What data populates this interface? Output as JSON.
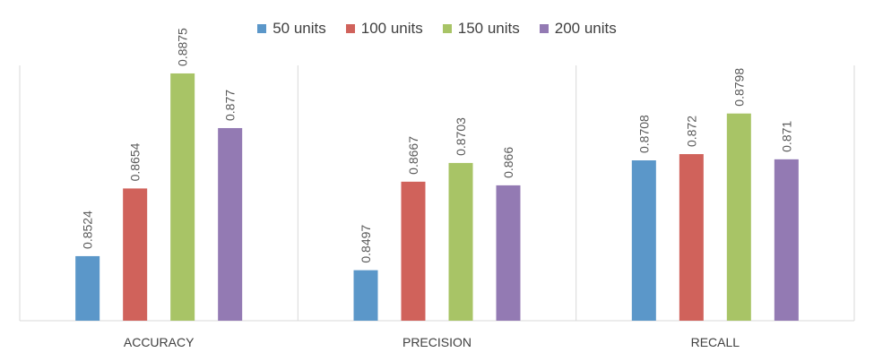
{
  "chart_data": {
    "type": "bar",
    "categories": [
      "ACCURACY",
      "PRECISION",
      "RECALL"
    ],
    "series": [
      {
        "name": "50 units",
        "color": "#5B97C9",
        "values": [
          0.8524,
          0.8497,
          0.8708
        ],
        "labels": [
          "0.8524",
          "0.8497",
          "0.8708"
        ]
      },
      {
        "name": "100 units",
        "color": "#D0625B",
        "values": [
          0.8654,
          0.8667,
          0.872
        ],
        "labels": [
          "0.8654",
          "0.8667",
          "0.872"
        ]
      },
      {
        "name": "150 units",
        "color": "#A8C466",
        "values": [
          0.8875,
          0.8703,
          0.8798
        ],
        "labels": [
          "0.8875",
          "0.8703",
          "0.8798"
        ]
      },
      {
        "name": "200 units",
        "color": "#937AB3",
        "values": [
          0.877,
          0.866,
          0.871
        ],
        "labels": [
          "0.877",
          "0.866",
          "0.871"
        ]
      }
    ],
    "ylim": [
      0.84,
      0.893
    ],
    "legend_position": "top-center",
    "data_labels": true,
    "data_label_rotation": "vertical",
    "grid": false,
    "category_separators": true
  }
}
